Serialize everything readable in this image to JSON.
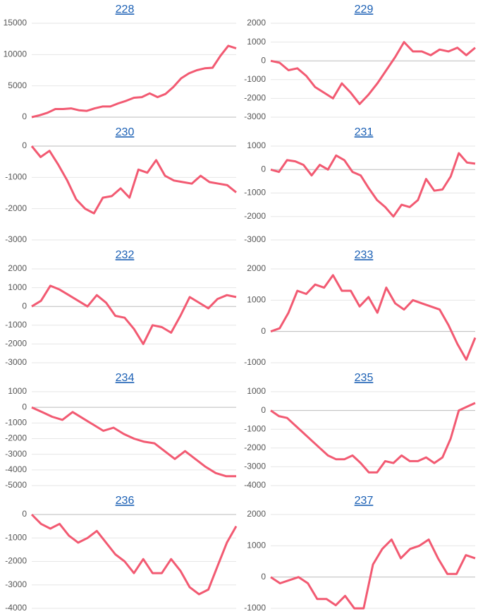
{
  "chart_data": [
    {
      "type": "line",
      "title": "228",
      "color": "#f25a72",
      "grid": true,
      "ylim": [
        0,
        15000
      ],
      "yticks": [
        0,
        5000,
        10000,
        15000
      ],
      "values": [
        0,
        300,
        700,
        1300,
        1300,
        1400,
        1100,
        1000,
        1400,
        1700,
        1700,
        2200,
        2600,
        3100,
        3200,
        3800,
        3200,
        3700,
        4800,
        6200,
        7000,
        7500,
        7800,
        7900,
        9800,
        11400,
        11000
      ]
    },
    {
      "type": "line",
      "title": "229",
      "color": "#f25a72",
      "grid": true,
      "ylim": [
        -3000,
        2000
      ],
      "yticks": [
        -3000,
        -2000,
        -1000,
        0,
        1000,
        2000
      ],
      "values": [
        0,
        -100,
        -500,
        -400,
        -800,
        -1400,
        -1700,
        -2000,
        -1200,
        -1700,
        -2300,
        -1800,
        -1200,
        -500,
        200,
        1000,
        500,
        500,
        300,
        600,
        500,
        700,
        300,
        700
      ]
    },
    {
      "type": "line",
      "title": "230",
      "color": "#f25a72",
      "grid": true,
      "ylim": [
        -3000,
        0
      ],
      "yticks": [
        -3000,
        -2000,
        -1000,
        0
      ],
      "values": [
        0,
        -350,
        -150,
        -600,
        -1100,
        -1700,
        -2000,
        -2150,
        -1650,
        -1600,
        -1350,
        -1650,
        -750,
        -850,
        -450,
        -950,
        -1100,
        -1150,
        -1200,
        -950,
        -1150,
        -1200,
        -1250,
        -1480
      ]
    },
    {
      "type": "line",
      "title": "231",
      "color": "#f25a72",
      "grid": true,
      "ylim": [
        -3000,
        1000
      ],
      "yticks": [
        -3000,
        -2000,
        -1000,
        0,
        1000
      ],
      "values": [
        0,
        -100,
        400,
        350,
        200,
        -250,
        200,
        0,
        600,
        400,
        -100,
        -250,
        -800,
        -1300,
        -1600,
        -2000,
        -1500,
        -1600,
        -1300,
        -400,
        -900,
        -850,
        -300,
        700,
        300,
        250
      ]
    },
    {
      "type": "line",
      "title": "232",
      "color": "#f25a72",
      "grid": true,
      "ylim": [
        -3000,
        2000
      ],
      "yticks": [
        -3000,
        -2000,
        -1000,
        0,
        1000,
        2000
      ],
      "values": [
        0,
        300,
        1100,
        900,
        600,
        300,
        0,
        600,
        200,
        -500,
        -600,
        -1200,
        -2000,
        -1000,
        -1100,
        -1400,
        -500,
        500,
        200,
        -100,
        400,
        600,
        500
      ]
    },
    {
      "type": "line",
      "title": "233",
      "color": "#f25a72",
      "grid": true,
      "ylim": [
        -1000,
        2000
      ],
      "yticks": [
        -1000,
        0,
        1000,
        2000
      ],
      "values": [
        0,
        100,
        600,
        1300,
        1200,
        1500,
        1400,
        1800,
        1300,
        1300,
        800,
        1100,
        600,
        1400,
        900,
        700,
        1000,
        900,
        800,
        700,
        200,
        -400,
        -900,
        -200
      ]
    },
    {
      "type": "line",
      "title": "234",
      "color": "#f25a72",
      "grid": true,
      "ylim": [
        -5000,
        1000
      ],
      "yticks": [
        -5000,
        -4000,
        -3000,
        -2000,
        -1000,
        0,
        1000
      ],
      "values": [
        0,
        -300,
        -600,
        -800,
        -300,
        -700,
        -1100,
        -1500,
        -1300,
        -1700,
        -2000,
        -2200,
        -2300,
        -2800,
        -3300,
        -2800,
        -3300,
        -3800,
        -4200,
        -4400,
        -4400
      ]
    },
    {
      "type": "line",
      "title": "235",
      "color": "#f25a72",
      "grid": true,
      "ylim": [
        -4000,
        1000
      ],
      "yticks": [
        -4000,
        -3000,
        -2000,
        -1000,
        0,
        1000
      ],
      "values": [
        0,
        -300,
        -400,
        -800,
        -1200,
        -1600,
        -2000,
        -2400,
        -2600,
        -2600,
        -2400,
        -2800,
        -3300,
        -3300,
        -2700,
        -2800,
        -2400,
        -2700,
        -2700,
        -2500,
        -2800,
        -2500,
        -1500,
        0,
        200,
        400
      ]
    },
    {
      "type": "line",
      "title": "236",
      "color": "#f25a72",
      "grid": true,
      "ylim": [
        -4000,
        0
      ],
      "yticks": [
        -4000,
        -3000,
        -2000,
        -1000,
        0
      ],
      "values": [
        0,
        -400,
        -600,
        -400,
        -900,
        -1200,
        -1000,
        -700,
        -1200,
        -1700,
        -2000,
        -2500,
        -1900,
        -2500,
        -2500,
        -1900,
        -2400,
        -3100,
        -3400,
        -3200,
        -2200,
        -1200,
        -500
      ]
    },
    {
      "type": "line",
      "title": "237",
      "color": "#f25a72",
      "grid": true,
      "ylim": [
        -1000,
        2000
      ],
      "yticks": [
        -1000,
        0,
        1000,
        2000
      ],
      "values": [
        0,
        -200,
        -100,
        0,
        -200,
        -700,
        -700,
        -900,
        -600,
        -1000,
        -1000,
        400,
        900,
        1200,
        600,
        900,
        1000,
        1200,
        600,
        100,
        100,
        700,
        600
      ]
    }
  ]
}
